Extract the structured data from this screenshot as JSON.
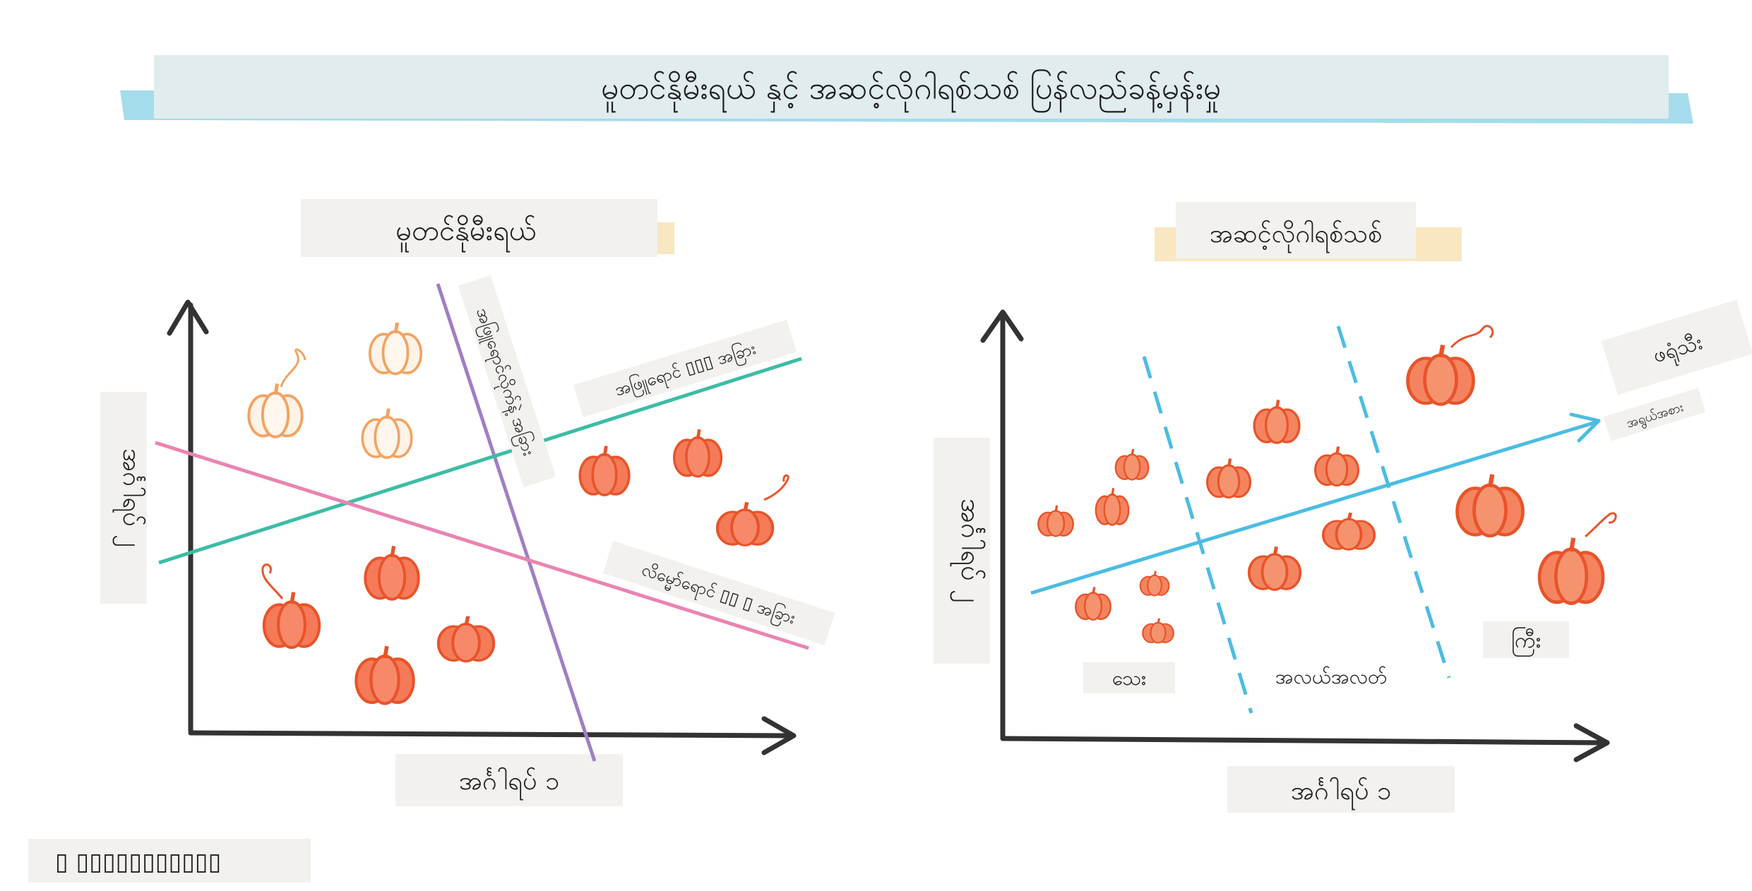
{
  "title": "မူတင်နိုမီးရယ် နှင့် အဆင့်လိုဂါရစ်သစ် ပြန်လည်ခန့်မှန်းမှု",
  "multinomial": {
    "heading": "မူတင်နိုမီးရယ်",
    "y_axis_label": "အင်္ဂါရပ် ၂",
    "x_axis_label": "အင်္ဂါရပ် ၁",
    "lines": {
      "purple": "အဖြူရောင်လိုက်နဲ့ အခြား",
      "green": "အဖြူရောင် ▯▯▯ အခြား",
      "pink": "လိမ္မော်ရောင် ▯▯ ▯ အခြား"
    },
    "colors": {
      "purple": "#9f7fc4",
      "green": "#3dbca6",
      "pink": "#ea84b1",
      "white_pumpkin": "#f3a361",
      "orange_pumpkin": "#ea5a2e"
    }
  },
  "ordinal": {
    "heading": "အဆင့်လိုဂါရစ်သစ်",
    "y_axis_label": "အင်္ဂါရပ် ၂",
    "x_axis_label": "အင်္ဂါရပ် ၁",
    "arrow_label": "ဖရုံသီး",
    "arrow_sublabel": "အရွယ်အစား",
    "zones": {
      "small": "သေး",
      "medium": "အလယ်အလတ်",
      "large": "ကြီး"
    },
    "colors": {
      "arrow": "#4bbde2",
      "dashes": "#4bbde2",
      "pumpkin": "#ea5a2e"
    }
  },
  "footer": "▯ ▯▯▯▯▯▯▯▯▯▯▯"
}
